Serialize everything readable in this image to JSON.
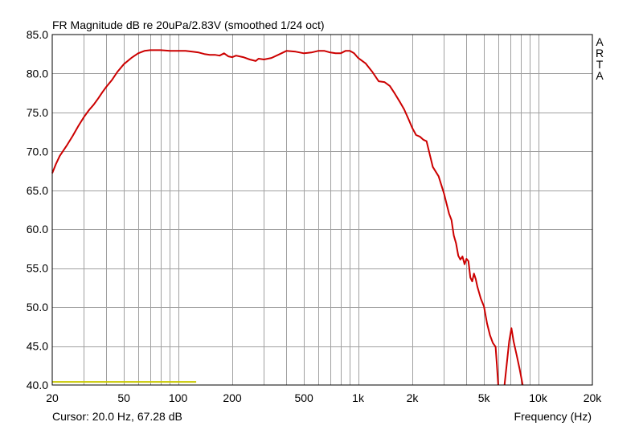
{
  "chart_data": {
    "type": "line",
    "title": "FR Magnitude dB re 20uPa/2.83V (smoothed 1/24 oct)",
    "xlabel": "Frequency (Hz)",
    "ylabel": "",
    "x_scale": "log",
    "xlim": [
      20,
      20000
    ],
    "ylim": [
      40,
      85
    ],
    "grid": true,
    "x_tick_labels": [
      {
        "value": 20,
        "label": "20"
      },
      {
        "value": 50,
        "label": "50"
      },
      {
        "value": 100,
        "label": "100"
      },
      {
        "value": 200,
        "label": "200"
      },
      {
        "value": 500,
        "label": "500"
      },
      {
        "value": 1000,
        "label": "1k"
      },
      {
        "value": 2000,
        "label": "2k"
      },
      {
        "value": 5000,
        "label": "5k"
      },
      {
        "value": 10000,
        "label": "10k"
      },
      {
        "value": 20000,
        "label": "20k"
      }
    ],
    "y_tick_labels": [
      {
        "value": 85,
        "label": "85.0"
      },
      {
        "value": 80,
        "label": "80.0"
      },
      {
        "value": 75,
        "label": "75.0"
      },
      {
        "value": 70,
        "label": "70.0"
      },
      {
        "value": 65,
        "label": "65.0"
      },
      {
        "value": 60,
        "label": "60.0"
      },
      {
        "value": 55,
        "label": "55.0"
      },
      {
        "value": 50,
        "label": "50.0"
      },
      {
        "value": 45,
        "label": "45.0"
      },
      {
        "value": 40,
        "label": "40.0"
      }
    ],
    "series": [
      {
        "color": "#cc0000",
        "segments": [
          [
            [
              20,
              67.2
            ],
            [
              21,
              68.4
            ],
            [
              22,
              69.4
            ],
            [
              24,
              70.7
            ],
            [
              26,
              72.0
            ],
            [
              28,
              73.3
            ],
            [
              30,
              74.4
            ],
            [
              32,
              75.3
            ],
            [
              34,
              76.0
            ],
            [
              36,
              76.8
            ],
            [
              38,
              77.6
            ],
            [
              40,
              78.3
            ],
            [
              43,
              79.2
            ],
            [
              46,
              80.2
            ],
            [
              50,
              81.2
            ],
            [
              55,
              82.0
            ],
            [
              60,
              82.6
            ],
            [
              65,
              82.9
            ],
            [
              70,
              83.0
            ],
            [
              80,
              83.0
            ],
            [
              90,
              82.9
            ],
            [
              100,
              82.9
            ],
            [
              110,
              82.9
            ],
            [
              120,
              82.8
            ],
            [
              130,
              82.7
            ],
            [
              140,
              82.5
            ],
            [
              150,
              82.4
            ],
            [
              160,
              82.4
            ],
            [
              170,
              82.3
            ],
            [
              180,
              82.6
            ],
            [
              190,
              82.2
            ],
            [
              200,
              82.1
            ],
            [
              210,
              82.3
            ],
            [
              230,
              82.1
            ],
            [
              250,
              81.8
            ],
            [
              270,
              81.6
            ],
            [
              280,
              81.9
            ],
            [
              300,
              81.8
            ],
            [
              330,
              82.0
            ],
            [
              360,
              82.4
            ],
            [
              400,
              82.9
            ],
            [
              450,
              82.8
            ],
            [
              500,
              82.6
            ],
            [
              550,
              82.7
            ],
            [
              600,
              82.9
            ],
            [
              650,
              82.9
            ],
            [
              700,
              82.7
            ],
            [
              750,
              82.6
            ],
            [
              800,
              82.6
            ],
            [
              850,
              82.9
            ],
            [
              900,
              82.9
            ],
            [
              950,
              82.6
            ],
            [
              1000,
              82.0
            ],
            [
              1100,
              81.3
            ],
            [
              1200,
              80.2
            ],
            [
              1300,
              79.0
            ],
            [
              1400,
              78.9
            ],
            [
              1500,
              78.4
            ],
            [
              1600,
              77.4
            ],
            [
              1700,
              76.4
            ],
            [
              1800,
              75.4
            ],
            [
              1900,
              74.2
            ],
            [
              2000,
              73.0
            ],
            [
              2100,
              72.1
            ],
            [
              2200,
              71.9
            ],
            [
              2300,
              71.5
            ],
            [
              2400,
              71.3
            ],
            [
              2500,
              69.6
            ],
            [
              2600,
              68.0
            ],
            [
              2800,
              66.8
            ],
            [
              3000,
              64.6
            ],
            [
              3200,
              62.0
            ],
            [
              3300,
              61.2
            ],
            [
              3400,
              59.2
            ],
            [
              3500,
              58.2
            ],
            [
              3600,
              56.6
            ],
            [
              3700,
              56.1
            ],
            [
              3800,
              56.5
            ],
            [
              3900,
              55.5
            ],
            [
              4000,
              56.2
            ],
            [
              4100,
              55.9
            ],
            [
              4200,
              53.8
            ],
            [
              4300,
              53.3
            ],
            [
              4400,
              54.3
            ],
            [
              4500,
              53.6
            ],
            [
              4600,
              52.6
            ],
            [
              4800,
              51.1
            ],
            [
              5000,
              50.1
            ],
            [
              5200,
              47.9
            ],
            [
              5400,
              46.4
            ],
            [
              5600,
              45.4
            ],
            [
              5800,
              44.9
            ],
            [
              5900,
              42.6
            ],
            [
              6000,
              40.0
            ]
          ],
          [
            [
              6500,
              40.0
            ],
            [
              6700,
              42.8
            ],
            [
              6900,
              45.6
            ],
            [
              7100,
              47.3
            ],
            [
              7300,
              45.6
            ],
            [
              7600,
              43.8
            ],
            [
              7900,
              42.0
            ],
            [
              8200,
              40.0
            ]
          ]
        ]
      },
      {
        "color": "#c8c800",
        "points": [
          [
            20,
            40.4
          ],
          [
            126,
            40.4
          ]
        ]
      }
    ],
    "annotations": [
      "A",
      "R",
      "T",
      "A"
    ],
    "cursor_text": "Cursor: 20.0 Hz, 67.28 dB"
  }
}
